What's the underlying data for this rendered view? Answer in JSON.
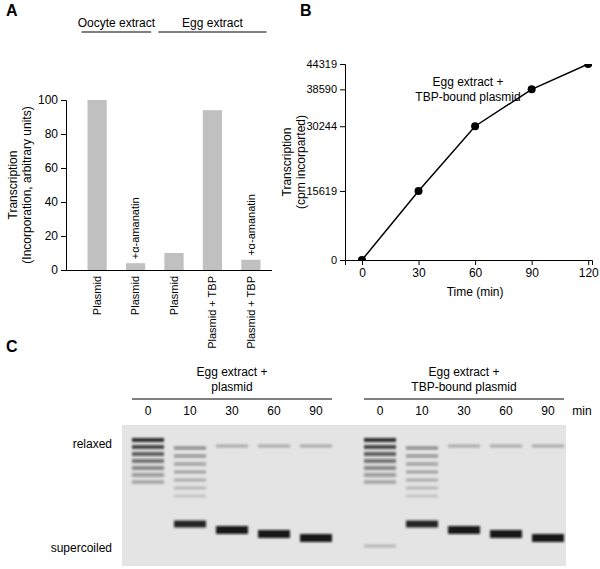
{
  "chart_data": [
    {
      "type": "bar",
      "panel": "A",
      "categories": [
        "Plasmid",
        "Plasmid",
        "Plasmid",
        "Plasmid + TBP",
        "Plasmid + TBP"
      ],
      "values": [
        100,
        4,
        10,
        94,
        6
      ],
      "color": "#c0c0c0",
      "groups": [
        "Oocyte extract",
        "Oocyte extract",
        "Egg extract",
        "Egg extract",
        "Egg extract"
      ],
      "annotations": [
        null,
        "+α-amanatin",
        null,
        null,
        "+α-amanatin"
      ],
      "y_label": [
        "Transcription",
        "(Incorporation, arbitrary units)"
      ],
      "ylim": [
        0,
        100
      ],
      "yticks": [
        0,
        20,
        40,
        60,
        80,
        100
      ]
    },
    {
      "type": "line",
      "panel": "B",
      "x": [
        0,
        30,
        60,
        90,
        120
      ],
      "values": [
        0,
        15619,
        30244,
        38590,
        44319
      ],
      "color": "#000000",
      "marker": "circle",
      "annotation": [
        "Egg extract +",
        "TBP-bound plasmid"
      ],
      "x_label": "Time (min)",
      "y_label": [
        "Transcription",
        "(cpm incorparted)"
      ],
      "xlim": [
        -9,
        122
      ],
      "xticks": [
        0,
        30,
        60,
        90,
        120
      ],
      "ylim": [
        0,
        44319
      ],
      "yticks": [
        0,
        15619,
        30244,
        38590,
        44319
      ]
    },
    {
      "type": "gel",
      "panel": "C",
      "groups": [
        {
          "label": [
            "Egg extract +",
            "plasmid"
          ],
          "lanes": [
            0,
            10,
            30,
            60,
            90
          ]
        },
        {
          "label": [
            "Egg extract +",
            "TBP-bound plasmid"
          ],
          "lanes": [
            0,
            10,
            30,
            60,
            90
          ]
        }
      ],
      "lane_unit": "min",
      "band_labels": [
        "relaxed",
        "supercoiled"
      ]
    }
  ]
}
